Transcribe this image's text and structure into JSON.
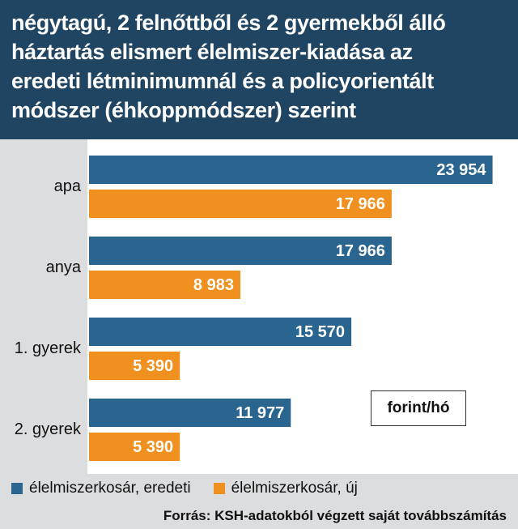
{
  "header": {
    "title_lines": [
      "négytagú, 2 felnőttből és 2 gyermekből álló",
      "háztartás elismert élelmiszer-kiadása az",
      "eredeti létminimumnál és a policyorientált",
      "módszer (éhkoppmódszer) szerint"
    ]
  },
  "unit_label": "forint/hó",
  "legend": {
    "items": [
      {
        "label": "élelmiszerkosár, eredeti",
        "color": "#2a6590"
      },
      {
        "label": "élelmiszerkosár, új",
        "color": "#f0901e"
      }
    ]
  },
  "source": "Forrás: KSH-adatokból végzett saját továbbszámítás",
  "chart_data": {
    "type": "bar",
    "orientation": "horizontal",
    "categories": [
      "apa",
      "anya",
      "1. gyerek",
      "2. gyerek"
    ],
    "series": [
      {
        "name": "élelmiszerkosár, eredeti",
        "color": "#2a6590",
        "values": [
          23954,
          17966,
          15570,
          11977
        ],
        "value_labels": [
          "23 954",
          "17 966",
          "15 570",
          "11 977"
        ]
      },
      {
        "name": "élelmiszerkosár, új",
        "color": "#f0901e",
        "values": [
          17966,
          8983,
          5390,
          5390
        ],
        "value_labels": [
          "17 966",
          "8 983",
          "5 390",
          "5 390"
        ]
      }
    ],
    "xlim": [
      0,
      24600
    ],
    "grid": false,
    "legend_position": "bottom"
  }
}
